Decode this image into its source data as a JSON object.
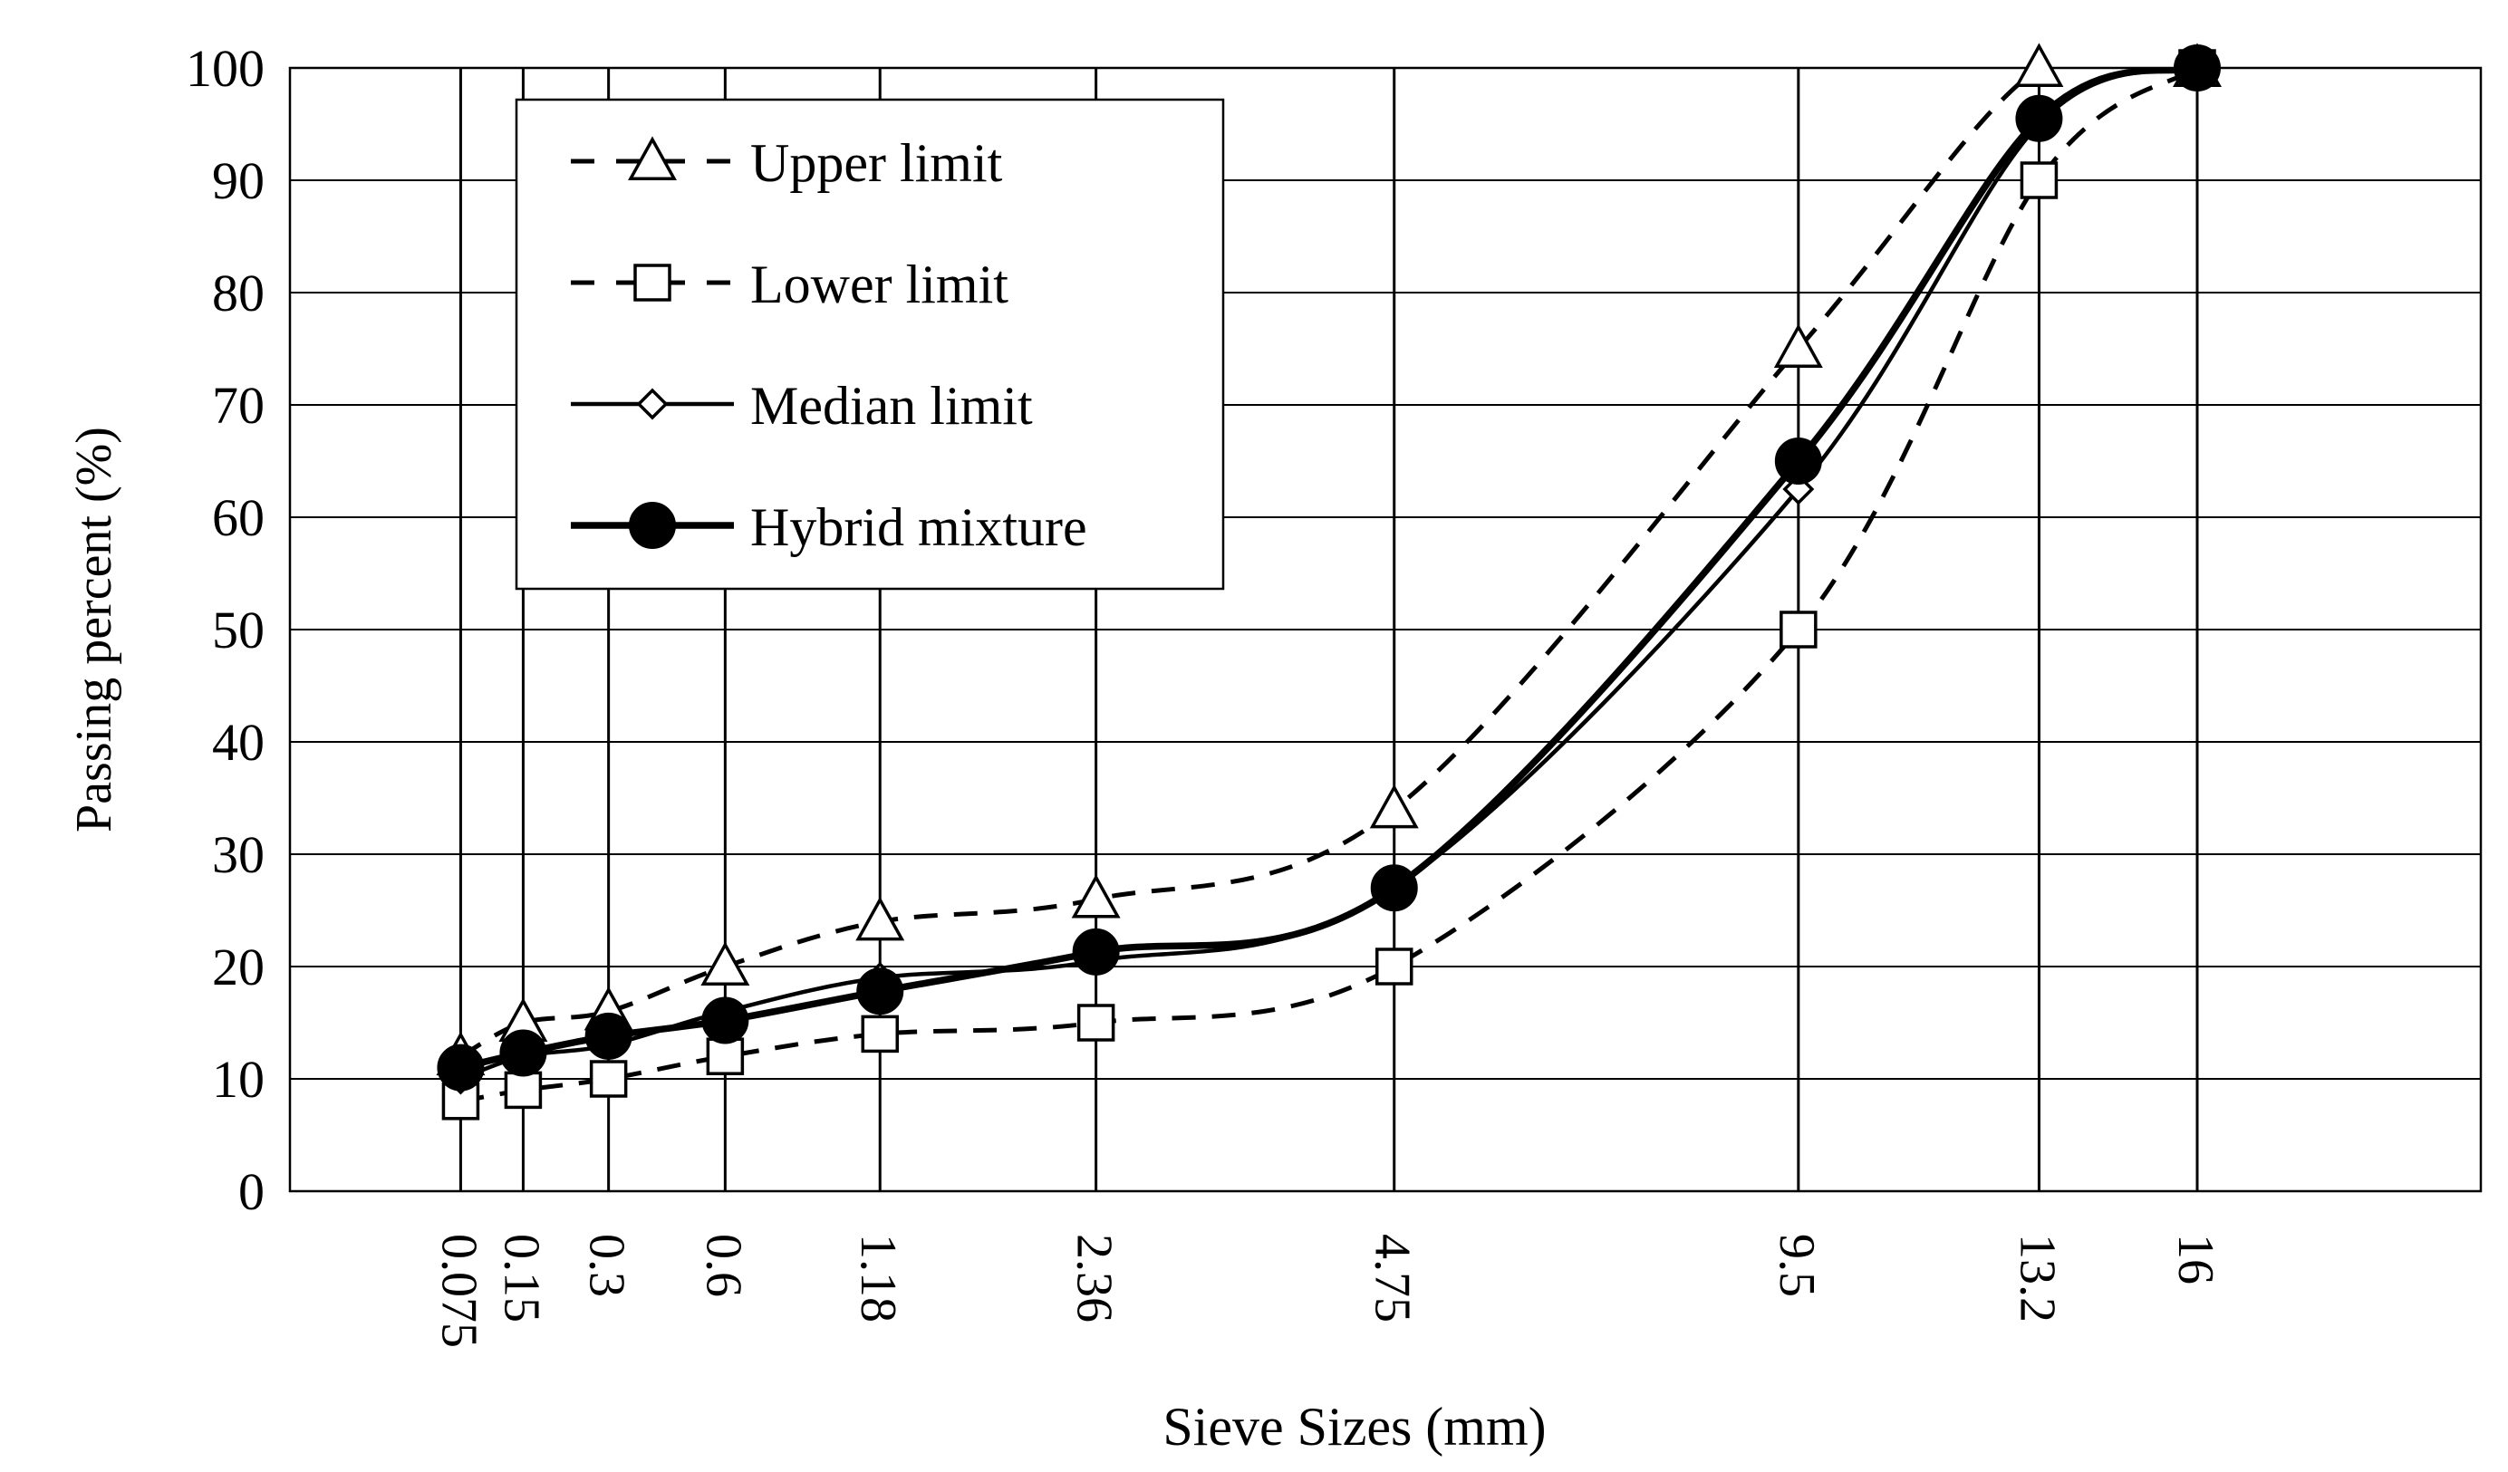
{
  "chart_data": {
    "type": "line",
    "title": "",
    "xlabel": "Sieve Sizes (mm)",
    "ylabel": "Passing percent (%)",
    "ylim": [
      0,
      100
    ],
    "yticks": [
      "0",
      "10",
      "20",
      "30",
      "40",
      "50",
      "60",
      "70",
      "80",
      "90",
      "100"
    ],
    "xlim_power045": [
      0,
      4.0
    ],
    "x_scale": "power 0.45",
    "grid": true,
    "legend_position": "top-left",
    "categories": [
      "0.075",
      "0.15",
      "0.3",
      "0.6",
      "1.18",
      "2.36",
      "4.75",
      "9.5",
      "13.2",
      "16"
    ],
    "x": [
      0.075,
      0.15,
      0.3,
      0.6,
      1.18,
      2.36,
      4.75,
      9.5,
      13.2,
      16
    ],
    "series": [
      {
        "name": "Upper limit",
        "marker": "triangle",
        "line": "dashed",
        "values": [
          12,
          15,
          16,
          20,
          24,
          26,
          34,
          75,
          100,
          100
        ]
      },
      {
        "name": "Lower limit",
        "marker": "square",
        "line": "dashed",
        "values": [
          8,
          9,
          10,
          12,
          14,
          15,
          20,
          50,
          90,
          100
        ]
      },
      {
        "name": "Median limit",
        "marker": "diamond",
        "line": "thin-solid",
        "values": [
          10,
          12,
          13,
          16,
          19,
          20.5,
          27,
          62.5,
          95,
          100
        ]
      },
      {
        "name": "Hybrid mixture",
        "marker": "circle",
        "line": "thick-solid",
        "values": [
          11,
          12.3,
          13.8,
          15.2,
          17.8,
          21.3,
          27,
          65,
          95.5,
          100
        ]
      }
    ]
  }
}
